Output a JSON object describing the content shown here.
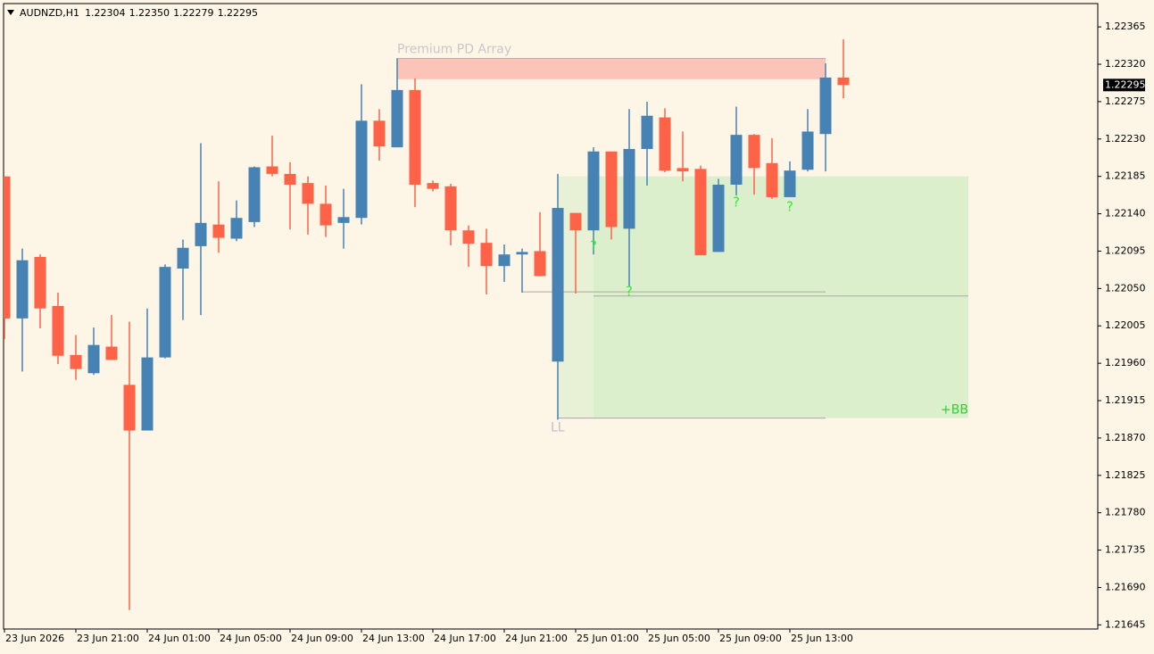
{
  "chart_data": {
    "type": "candlestick",
    "title": "AUDNZD,H1",
    "quote": [
      "1.22304",
      "1.22350",
      "1.22279",
      "1.22295"
    ],
    "categories": [
      "23 Jun 2026",
      null,
      null,
      null,
      "23 Jun 21:00",
      null,
      null,
      null,
      "24 Jun 01:00",
      null,
      null,
      null,
      "24 Jun 05:00",
      null,
      null,
      null,
      "24 Jun 09:00",
      null,
      null,
      null,
      "24 Jun 13:00",
      null,
      null,
      null,
      "24 Jun 17:00",
      null,
      null,
      null,
      "24 Jun 21:00",
      null,
      null,
      null,
      "25 Jun 01:00",
      null,
      null,
      null,
      "25 Jun 05:00",
      null,
      null,
      null,
      "25 Jun 09:00",
      null,
      null,
      null,
      "25 Jun 13:00",
      null,
      null,
      null
    ],
    "open": [
      1.22185,
      1.22014,
      1.22088,
      1.22029,
      1.2197,
      1.21948,
      1.2198,
      1.21934,
      1.21879,
      1.21967,
      1.22074,
      1.22101,
      1.22127,
      1.2211,
      1.2213,
      1.22197,
      1.22188,
      1.22177,
      1.22152,
      1.22129,
      1.22135,
      1.22252,
      1.2222,
      1.22289,
      1.22177,
      1.22173,
      1.2212,
      1.22105,
      1.22077,
      1.22091,
      1.22095,
      1.21962,
      1.22141,
      1.2212,
      1.22215,
      1.22122,
      1.22218,
      1.22256,
      1.22195,
      1.22194,
      1.22094,
      1.22175,
      1.22235,
      1.22201,
      1.2216,
      1.22193,
      1.22236,
      1.22304
    ],
    "high": [
      1.22185,
      1.22098,
      1.22091,
      1.22045,
      1.21994,
      1.22003,
      1.22018,
      1.2201,
      1.22026,
      1.22079,
      1.22109,
      1.22225,
      1.22179,
      1.22156,
      1.22197,
      1.22234,
      1.22202,
      1.22185,
      1.22174,
      1.2217,
      1.22296,
      1.22266,
      1.22327,
      1.22303,
      1.2218,
      1.22176,
      1.22126,
      1.22122,
      1.22103,
      1.22098,
      1.22142,
      1.22188,
      1.22141,
      1.2222,
      1.22215,
      1.22266,
      1.22275,
      1.22267,
      1.22239,
      1.22198,
      1.22182,
      1.22269,
      1.22236,
      1.22231,
      1.22203,
      1.22266,
      1.22321,
      1.2235
    ],
    "low": [
      1.21989,
      1.2195,
      1.22002,
      1.21959,
      1.2194,
      1.21946,
      1.21964,
      1.21663,
      1.21879,
      1.21966,
      1.22012,
      1.22018,
      1.22093,
      1.22107,
      1.22124,
      1.22185,
      1.22121,
      1.22115,
      1.22112,
      1.22098,
      1.22127,
      1.22204,
      1.2222,
      1.22148,
      1.22167,
      1.22102,
      1.22076,
      1.22043,
      1.22058,
      1.22045,
      1.22065,
      1.21892,
      1.22044,
      1.22091,
      1.22109,
      1.22053,
      1.22174,
      1.2219,
      1.22179,
      1.2209,
      1.22094,
      1.22162,
      1.22163,
      1.22158,
      1.2216,
      1.22191,
      1.22191,
      1.22279
    ],
    "close": [
      1.22014,
      1.22084,
      1.22026,
      1.21969,
      1.21953,
      1.21982,
      1.21964,
      1.21879,
      1.21967,
      1.22076,
      1.22099,
      1.22129,
      1.22111,
      1.22135,
      1.22196,
      1.22188,
      1.22175,
      1.22152,
      1.22126,
      1.22136,
      1.22252,
      1.22221,
      1.22289,
      1.22175,
      1.2217,
      1.2212,
      1.22104,
      1.22077,
      1.22091,
      1.22094,
      1.22065,
      1.22147,
      1.2212,
      1.22215,
      1.22124,
      1.22218,
      1.22258,
      1.22192,
      1.22191,
      1.2209,
      1.22175,
      1.22235,
      1.22195,
      1.2216,
      1.22192,
      1.22239,
      1.22304,
      1.22295
    ],
    "up_color": "#4682b4",
    "down_color": "#ff6347",
    "ylim": [
      1.2164,
      1.22392
    ],
    "yticks": [
      1.22365,
      {
        "value": 1.2232,
        "label": "1.22320"
      },
      1.22275,
      {
        "value": 1.2223,
        "label": "1.22230"
      },
      1.22185,
      {
        "value": 1.2214,
        "label": "1.22140"
      },
      1.22095,
      {
        "value": 1.2205,
        "label": "1.22050"
      },
      1.22005,
      {
        "value": 1.2196,
        "label": "1.21960"
      },
      1.21915,
      {
        "value": 1.2187,
        "label": "1.21870"
      },
      1.21825,
      {
        "value": 1.2178,
        "label": "1.21780"
      },
      1.21735,
      {
        "value": 1.2169,
        "label": "1.21690"
      },
      1.21645
    ],
    "last_price": {
      "value": 1.22295,
      "label": "1.22295"
    },
    "zones": [
      {
        "label": "Premium PD Array",
        "ylim": [
          1.22302,
          1.22327
        ],
        "color": "#fcc4b8"
      },
      {
        "label": "+BB",
        "ylim": [
          1.21894,
          1.22185
        ],
        "color": "#dcefcc"
      }
    ],
    "levels": [
      {
        "label": "LL",
        "value": 1.21894
      },
      {
        "value": 1.22046
      },
      {
        "value": 1.22041
      }
    ],
    "markers": [
      "?",
      "?",
      "?",
      "?"
    ]
  }
}
